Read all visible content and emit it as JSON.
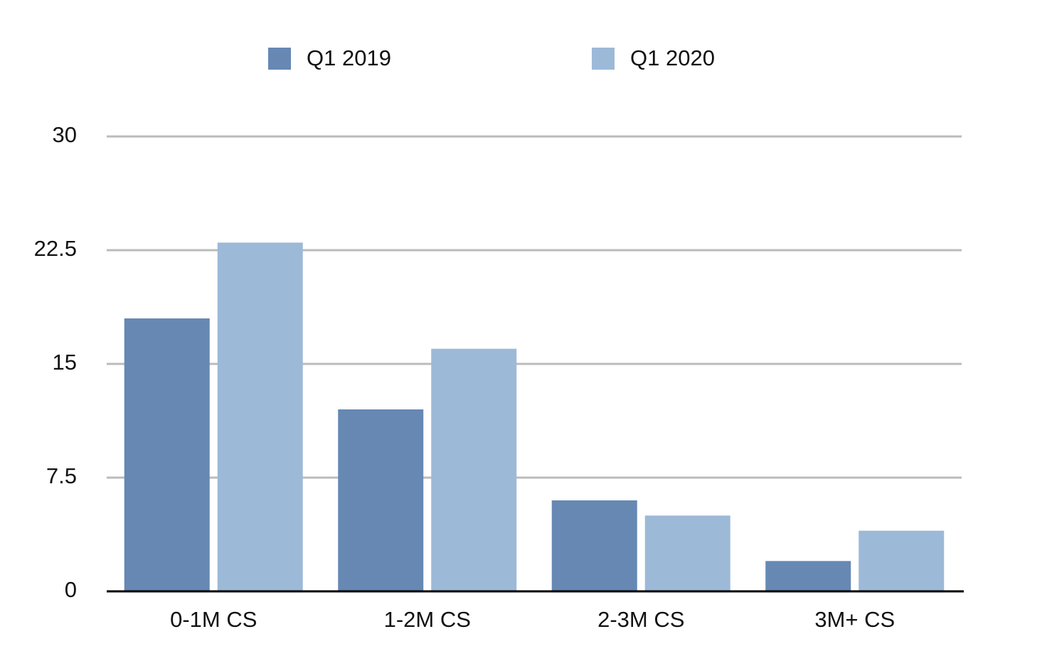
{
  "chart_data": {
    "type": "bar",
    "categories": [
      "0-1M CS",
      "1-2M CS",
      "2-3M CS",
      "3M+ CS"
    ],
    "series": [
      {
        "name": "Q1 2019",
        "color": "#6688b3",
        "values": [
          18,
          12,
          6,
          2
        ]
      },
      {
        "name": "Q1 2020",
        "color": "#9db9d8",
        "values": [
          23,
          16,
          5,
          4
        ]
      }
    ],
    "ylim": [
      0,
      30
    ],
    "yticks": [
      0,
      7.5,
      15,
      22.5,
      30
    ],
    "grid": true,
    "legend": "top"
  }
}
